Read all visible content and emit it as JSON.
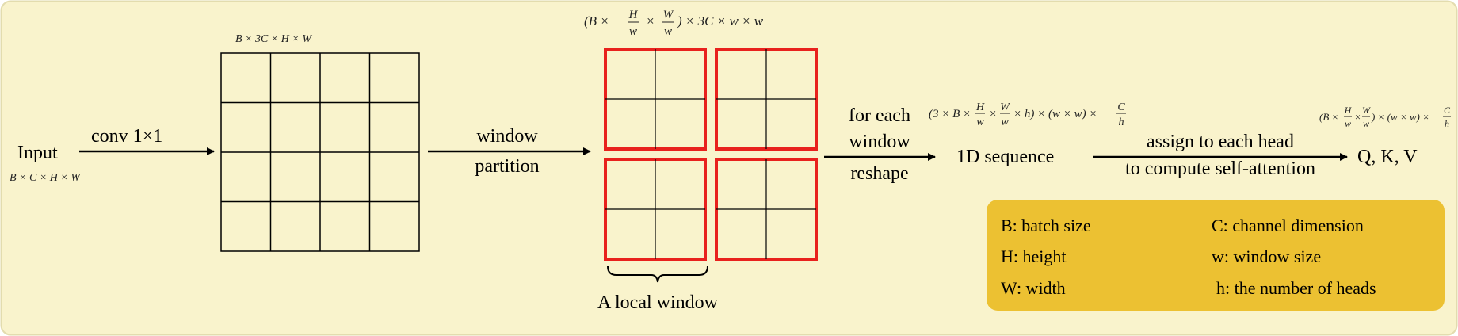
{
  "colors": {
    "background": "#f9f3cc",
    "border": "#e3dcae",
    "grid_line": "#000000",
    "window_border": "#e8211d",
    "legend_box": "#ecc132"
  },
  "input": {
    "label": "Input",
    "shape": "B × C × H × W"
  },
  "conv": {
    "label": "conv 1×1",
    "shape": "B × 3C × H × W"
  },
  "partition": {
    "label_line1": "window",
    "label_line2": "partition",
    "shape_prefix": "(B ×",
    "shape_h_num": "H",
    "shape_h_den": "w",
    "shape_times": "×",
    "shape_w_num": "W",
    "shape_w_den": "w",
    "shape_suffix": ") × 3C × w × w",
    "local_window_label": "A local window"
  },
  "reshape": {
    "label_line1": "for each",
    "label_line2": "window",
    "label_line3": "reshape",
    "shape_prefix": "(3 × B ×",
    "shape_h_num": "H",
    "shape_h_den": "w",
    "shape_times1": "×",
    "shape_w_num": "W",
    "shape_w_den": "w",
    "shape_mid": "× h) × (w × w) ×",
    "shape_c_num": "C",
    "shape_c_den": "h"
  },
  "sequence": {
    "label": "1D sequence"
  },
  "assign": {
    "label_line1": "assign to each head",
    "label_line2": "to compute self-attention"
  },
  "qkv": {
    "label": "Q, K, V",
    "shape_prefix": "(B ×",
    "shape_h_num": "H",
    "shape_h_den": "w",
    "shape_times": "×",
    "shape_w_num": "W",
    "shape_w_den": "w",
    "shape_mid": ") × (w × w) ×",
    "shape_c_num": "C",
    "shape_c_den": "h"
  },
  "legend": {
    "items": [
      "B: batch size",
      "C: channel dimension",
      "H: height",
      "w: window size",
      "W: width",
      "h: the number of heads"
    ]
  }
}
